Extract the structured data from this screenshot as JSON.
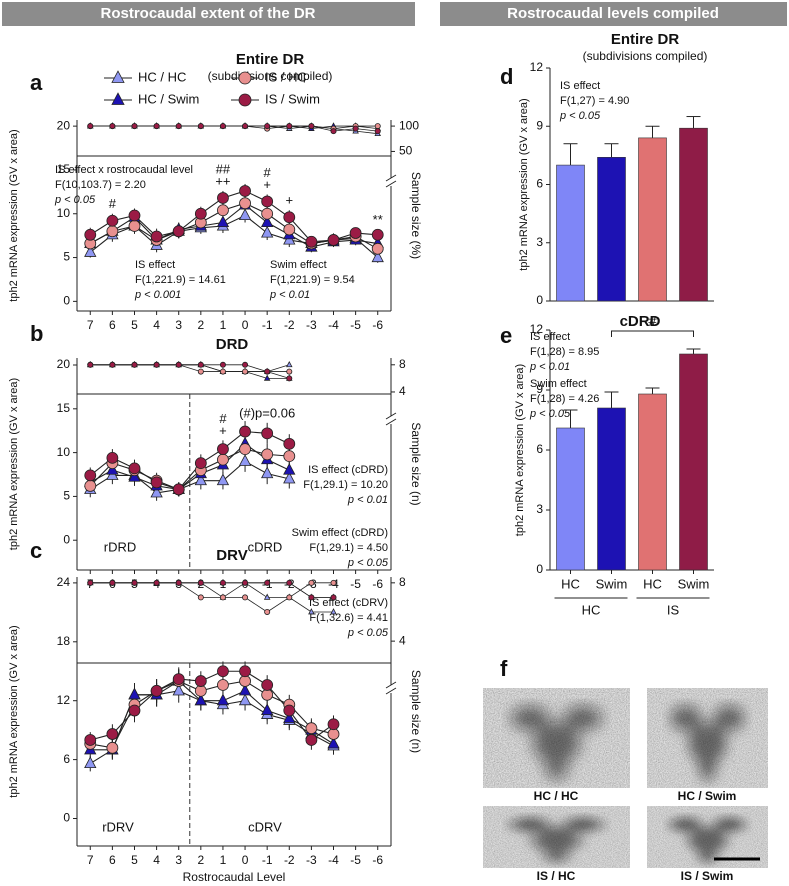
{
  "headers": [
    "Rostrocaudal extent of the DR",
    "Rostrocaudal levels compiled"
  ],
  "chart_data": [
    {
      "type": "line",
      "label": "a",
      "title": "Entire DR",
      "subtitle": "(subdivisions compiled)",
      "legend": "top",
      "line_color": "#222",
      "ylabel": "tph2 mRNA expression (GV x area)",
      "y2label": "Sample size (%)",
      "x": [
        7,
        6,
        5,
        4,
        3,
        2,
        1,
        0,
        -1,
        -2,
        -3,
        -4,
        -5,
        -6
      ],
      "xlim": [
        7.6,
        -6.6
      ],
      "xticks": [
        7,
        6,
        5,
        4,
        3,
        2,
        1,
        0,
        -1,
        -2,
        -3,
        -4,
        -5,
        -6
      ],
      "ylim": [
        -1.1,
        20.7
      ],
      "yticks": [
        0,
        5,
        10,
        15,
        20
      ],
      "y2lim": [
        41,
        112
      ],
      "y2ticks": [
        50,
        100
      ],
      "series": [
        {
          "name": "HC / HC",
          "color": "#8f97f2",
          "marker": "triangle",
          "values": [
            5.6,
            7.6,
            8.6,
            6.4,
            8.0,
            8.4,
            8.6,
            9.8,
            7.8,
            7.0,
            6.6,
            7.0,
            7.2,
            5.0
          ],
          "errors": [
            0.6,
            0.8,
            0.9,
            0.8,
            0.8,
            0.7,
            0.8,
            0.8,
            0.8,
            0.8,
            0.6,
            0.6,
            0.6,
            0.6
          ],
          "sample_size": [
            100,
            100,
            100,
            100,
            100,
            100,
            100,
            100,
            100,
            95,
            100,
            95,
            90,
            85
          ]
        },
        {
          "name": "HC / Swim",
          "color": "#1d12b3",
          "marker": "triangle",
          "values": [
            6.6,
            8.0,
            9.6,
            7.0,
            8.2,
            8.6,
            9.0,
            11.0,
            9.0,
            7.6,
            6.2,
            6.8,
            7.0,
            6.6
          ],
          "errors": [
            0.7,
            0.8,
            0.8,
            0.8,
            0.8,
            0.7,
            0.8,
            0.8,
            0.8,
            0.8,
            0.6,
            0.6,
            0.6,
            0.7
          ],
          "sample_size": [
            100,
            100,
            100,
            100,
            100,
            100,
            100,
            100,
            100,
            100,
            95,
            100,
            100,
            95
          ]
        },
        {
          "name": "IS / HC",
          "color": "#e8908f",
          "marker": "circle",
          "values": [
            6.6,
            8.0,
            8.6,
            7.0,
            8.0,
            9.0,
            10.4,
            11.2,
            10.0,
            8.2,
            6.6,
            7.0,
            7.4,
            6.0
          ],
          "errors": [
            0.7,
            0.8,
            0.8,
            0.8,
            0.8,
            0.8,
            0.9,
            0.8,
            0.8,
            0.8,
            0.6,
            0.6,
            0.6,
            0.7
          ],
          "sample_size": [
            100,
            100,
            100,
            100,
            100,
            100,
            100,
            100,
            95,
            100,
            100,
            95,
            100,
            100
          ]
        },
        {
          "name": "IS / Swim",
          "color": "#9b1b45",
          "marker": "circle",
          "values": [
            7.6,
            9.2,
            9.8,
            7.4,
            8.0,
            10.0,
            11.8,
            12.6,
            11.4,
            9.6,
            6.8,
            7.0,
            7.8,
            7.6
          ],
          "errors": [
            0.8,
            0.8,
            0.8,
            0.9,
            0.8,
            0.8,
            0.8,
            0.8,
            0.8,
            0.8,
            0.6,
            0.6,
            0.6,
            0.6
          ],
          "sample_size": [
            100,
            100,
            100,
            100,
            100,
            100,
            100,
            100,
            100,
            100,
            100,
            90,
            95,
            90
          ]
        }
      ],
      "stats": [
        [
          "IS effect x rostrocaudal level",
          "F(10,103.7) = 2.20",
          "p < 0.05"
        ],
        [
          "IS effect",
          "F(1,221.9) = 14.61",
          "p < 0.001"
        ],
        [
          "Swim effect",
          "F(1,221.9) = 9.54",
          "p < 0.01"
        ]
      ],
      "marks": [
        {
          "x": 6,
          "text": "#"
        },
        {
          "x": 1,
          "text": "++"
        },
        {
          "x": 1,
          "text": "##"
        },
        {
          "x": -1,
          "text": "+"
        },
        {
          "x": -1,
          "text": "#"
        },
        {
          "x": -2,
          "text": "+"
        },
        {
          "x": -6,
          "text": "**"
        }
      ]
    },
    {
      "type": "line",
      "label": "b",
      "title": "DRD",
      "line_color": "#222",
      "ylabel": "tph2 mRNA expression (GV x area)",
      "y2label": "Sample size (n)",
      "x": [
        7,
        6,
        5,
        4,
        3,
        2,
        1,
        0,
        -1,
        -2
      ],
      "xlim": [
        7.6,
        -6.6
      ],
      "xticks": [
        7,
        6,
        5,
        4,
        3,
        2,
        1,
        0,
        -1,
        -2,
        -3,
        -4,
        -5,
        -6
      ],
      "ylim": [
        -3.4,
        20.8
      ],
      "yticks": [
        0,
        5,
        10,
        15,
        20
      ],
      "y2lim": [
        3.7,
        9.0
      ],
      "y2ticks": [
        4,
        8
      ],
      "series": [
        {
          "name": "HC / HC",
          "color": "#8f97f2",
          "marker": "triangle",
          "values": [
            5.8,
            7.4,
            7.4,
            5.4,
            5.8,
            6.8,
            6.8,
            9.0,
            7.6,
            7.0
          ],
          "errors": [
            0.9,
            1.0,
            1.0,
            0.9,
            0.8,
            1.0,
            1.0,
            1.2,
            1.2,
            1.1
          ],
          "sample_size": [
            8,
            8,
            8,
            8,
            8,
            8,
            7,
            7,
            7,
            8
          ]
        },
        {
          "name": "HC / Swim",
          "color": "#1d12b3",
          "marker": "triangle",
          "values": [
            6.6,
            8.0,
            7.2,
            6.2,
            5.8,
            7.6,
            8.6,
            11.0,
            9.2,
            8.0
          ],
          "errors": [
            0.9,
            1.0,
            1.0,
            0.9,
            0.8,
            1.0,
            1.0,
            1.2,
            1.2,
            1.1
          ],
          "sample_size": [
            8,
            8,
            8,
            8,
            8,
            8,
            7,
            7,
            6,
            6
          ]
        },
        {
          "name": "IS / HC",
          "color": "#e8908f",
          "marker": "circle",
          "values": [
            6.2,
            8.8,
            8.0,
            6.8,
            5.8,
            8.0,
            9.2,
            10.4,
            9.8,
            9.6
          ],
          "errors": [
            0.9,
            1.0,
            1.0,
            0.9,
            0.8,
            1.0,
            1.0,
            1.2,
            1.2,
            1.1
          ],
          "sample_size": [
            8,
            8,
            8,
            8,
            8,
            7,
            7,
            7,
            7,
            7
          ]
        },
        {
          "name": "IS / Swim",
          "color": "#9b1b45",
          "marker": "circle",
          "values": [
            7.4,
            9.4,
            8.2,
            6.6,
            5.8,
            8.8,
            10.4,
            12.4,
            12.2,
            11.0
          ],
          "errors": [
            0.9,
            1.0,
            1.0,
            0.9,
            0.8,
            1.0,
            1.0,
            1.2,
            1.2,
            1.1
          ],
          "sample_size": [
            8,
            8,
            8,
            8,
            8,
            8,
            8,
            8,
            7,
            6
          ]
        }
      ],
      "stats": [
        [
          "IS effect (cDRD)",
          "F(1,29.1) = 10.20",
          "p < 0.01"
        ],
        [
          "Swim effect (cDRD)",
          "F(1,29.1) = 4.50",
          "p < 0.05"
        ]
      ],
      "marks": [
        {
          "x": 1,
          "text": "+"
        },
        {
          "x": 1,
          "text": "#"
        },
        {
          "x": -1,
          "text": "(#)p=0.06"
        }
      ],
      "regions": [
        "rDRD",
        "cDRD"
      ]
    },
    {
      "type": "line",
      "label": "c",
      "title": "DRV",
      "line_color": "#222",
      "ylabel": "tph2 mRNA expression (GV x area)",
      "y2label": "Sample size (n)",
      "xlabel": "Rostrocaudal Level",
      "x": [
        7,
        6,
        5,
        4,
        3,
        2,
        1,
        0,
        -1,
        -2,
        -3,
        -4
      ],
      "xlim": [
        7.6,
        -6.6
      ],
      "xticks": [
        7,
        6,
        5,
        4,
        3,
        2,
        1,
        0,
        -1,
        -2,
        -3,
        -4,
        -5,
        -6
      ],
      "ylim": [
        -2.8,
        24.6
      ],
      "yticks": [
        0,
        6,
        12,
        18,
        24
      ],
      "y2lim": [
        2.5,
        8.4
      ],
      "y2ticks": [
        4,
        8
      ],
      "series": [
        {
          "name": "HC / HC",
          "color": "#8f97f2",
          "marker": "triangle",
          "values": [
            5.6,
            7.0,
            12.6,
            12.6,
            13.0,
            12.0,
            11.6,
            12.0,
            10.6,
            10.0,
            8.6,
            7.4
          ],
          "errors": [
            0.8,
            1.0,
            1.2,
            1.2,
            1.2,
            1.0,
            1.0,
            1.0,
            1.0,
            1.0,
            1.0,
            0.9
          ],
          "sample_size": [
            8,
            8,
            8,
            8,
            8,
            8,
            7,
            8,
            7,
            7,
            6,
            6
          ]
        },
        {
          "name": "HC / Swim",
          "color": "#1d12b3",
          "marker": "triangle",
          "values": [
            7.0,
            7.0,
            12.6,
            12.6,
            14.0,
            12.0,
            12.0,
            13.0,
            11.0,
            10.2,
            9.0,
            7.6
          ],
          "errors": [
            0.8,
            1.0,
            1.2,
            1.2,
            1.2,
            1.0,
            1.0,
            1.0,
            1.0,
            1.0,
            1.0,
            0.9
          ],
          "sample_size": [
            8,
            8,
            8,
            8,
            8,
            8,
            8,
            8,
            8,
            8,
            7,
            7
          ]
        },
        {
          "name": "IS / HC",
          "color": "#e8908f",
          "marker": "circle",
          "values": [
            7.6,
            7.2,
            11.6,
            13.0,
            14.0,
            13.0,
            13.6,
            14.0,
            12.6,
            11.6,
            9.2,
            8.6
          ],
          "errors": [
            0.8,
            1.0,
            1.2,
            1.2,
            1.2,
            1.0,
            1.0,
            1.0,
            1.0,
            1.0,
            1.0,
            0.9
          ],
          "sample_size": [
            8,
            8,
            8,
            8,
            8,
            7,
            7,
            7,
            6,
            7,
            8,
            8
          ]
        },
        {
          "name": "IS / Swim",
          "color": "#9b1b45",
          "marker": "circle",
          "values": [
            8.0,
            8.6,
            11.0,
            13.0,
            14.2,
            14.0,
            15.0,
            15.0,
            13.6,
            11.0,
            8.0,
            9.6
          ],
          "errors": [
            0.8,
            1.0,
            1.2,
            1.2,
            1.2,
            1.0,
            1.0,
            1.0,
            1.0,
            1.0,
            1.0,
            0.9
          ],
          "sample_size": [
            8,
            8,
            8,
            8,
            8,
            8,
            8,
            8,
            8,
            8,
            7,
            7
          ]
        }
      ],
      "stats": [
        [
          "IS effect (cDRV)",
          "F(1,32.6) = 4.41",
          "p < 0.05"
        ]
      ],
      "regions": [
        "rDRV",
        "cDRV"
      ]
    },
    {
      "type": "bar",
      "label": "d",
      "title": "Entire DR",
      "subtitle": "(subdivisions compiled)",
      "ylabel": "tph2 mRNA expression (GV x area)",
      "values": [
        7.0,
        7.4,
        8.4,
        8.9
      ],
      "errors": [
        1.1,
        0.7,
        0.6,
        0.6
      ],
      "colors": [
        "#7f86f7",
        "#1d12b3",
        "#e07272",
        "#8f1c47"
      ],
      "ylim": [
        0,
        12
      ],
      "yticks": [
        0,
        3,
        6,
        9,
        12
      ],
      "stats": [
        [
          "IS effect",
          "F(1,27) = 4.90",
          "p < 0.05"
        ]
      ]
    },
    {
      "type": "bar",
      "label": "e",
      "title": "cDRD",
      "ylabel": "tph2 mRNA expression (GV x area)",
      "categories": [
        "HC",
        "Swim",
        "HC",
        "Swim"
      ],
      "group_labels": [
        "HC",
        "IS"
      ],
      "values": [
        7.1,
        8.1,
        8.8,
        10.8
      ],
      "errors": [
        0.9,
        0.8,
        0.3,
        0.25
      ],
      "colors": [
        "#7f86f7",
        "#1d12b3",
        "#e07272",
        "#8f1c47"
      ],
      "ylim": [
        0,
        12
      ],
      "yticks": [
        0,
        3,
        6,
        9,
        12
      ],
      "stats": [
        [
          "IS effect",
          "F(1,28) = 8.95",
          "p < 0.01"
        ],
        [
          "Swim effect",
          "F(1,28) = 4.26",
          "p < 0.05"
        ]
      ],
      "comparison": "#"
    }
  ],
  "panel_f": {
    "label": "f",
    "images": [
      "HC / HC",
      "HC / Swim",
      "IS / HC",
      "IS / Swim"
    ]
  }
}
